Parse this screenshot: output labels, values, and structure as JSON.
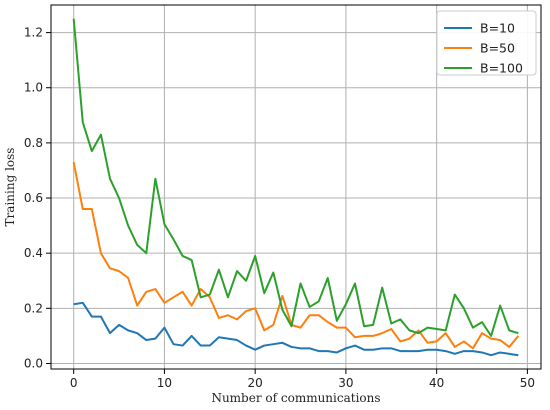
{
  "chart_data": {
    "type": "line",
    "title": "",
    "xlabel": "Number of communications",
    "ylabel": "Training loss",
    "xlim": [
      -2.5,
      51.5
    ],
    "ylim": [
      -0.02,
      1.3
    ],
    "xticks": [
      0,
      10,
      20,
      30,
      40,
      50
    ],
    "yticks": [
      0.0,
      0.2,
      0.4,
      0.6,
      0.8,
      1.0,
      1.2
    ],
    "grid": true,
    "legend_position": "top-right",
    "x": [
      0,
      1,
      2,
      3,
      4,
      5,
      6,
      7,
      8,
      9,
      10,
      11,
      12,
      13,
      14,
      15,
      16,
      17,
      18,
      19,
      20,
      21,
      22,
      23,
      24,
      25,
      26,
      27,
      28,
      29,
      30,
      31,
      32,
      33,
      34,
      35,
      36,
      37,
      38,
      39,
      40,
      41,
      42,
      43,
      44,
      45,
      46,
      47,
      48,
      49
    ],
    "series": [
      {
        "name": "B=10",
        "color": "#1f77b4",
        "values": [
          0.215,
          0.22,
          0.17,
          0.17,
          0.11,
          0.14,
          0.12,
          0.11,
          0.085,
          0.09,
          0.13,
          0.07,
          0.065,
          0.1,
          0.065,
          0.065,
          0.095,
          0.09,
          0.085,
          0.065,
          0.05,
          0.065,
          0.07,
          0.075,
          0.06,
          0.055,
          0.055,
          0.045,
          0.045,
          0.04,
          0.055,
          0.065,
          0.05,
          0.05,
          0.055,
          0.055,
          0.045,
          0.045,
          0.045,
          0.05,
          0.05,
          0.045,
          0.035,
          0.045,
          0.045,
          0.04,
          0.03,
          0.04,
          0.035,
          0.03
        ]
      },
      {
        "name": "B=50",
        "color": "#ff7f0e",
        "values": [
          0.73,
          0.56,
          0.56,
          0.4,
          0.345,
          0.335,
          0.31,
          0.21,
          0.26,
          0.27,
          0.22,
          0.24,
          0.26,
          0.21,
          0.27,
          0.24,
          0.165,
          0.175,
          0.16,
          0.19,
          0.2,
          0.12,
          0.14,
          0.245,
          0.14,
          0.13,
          0.175,
          0.175,
          0.15,
          0.13,
          0.13,
          0.095,
          0.1,
          0.1,
          0.11,
          0.125,
          0.08,
          0.09,
          0.12,
          0.075,
          0.08,
          0.11,
          0.06,
          0.08,
          0.055,
          0.11,
          0.09,
          0.085,
          0.06,
          0.1
        ]
      },
      {
        "name": "B=100",
        "color": "#2ca02c",
        "values": [
          1.25,
          0.875,
          0.77,
          0.83,
          0.67,
          0.6,
          0.5,
          0.43,
          0.4,
          0.67,
          0.505,
          0.45,
          0.39,
          0.375,
          0.24,
          0.25,
          0.34,
          0.24,
          0.335,
          0.3,
          0.39,
          0.255,
          0.33,
          0.195,
          0.135,
          0.29,
          0.205,
          0.225,
          0.31,
          0.155,
          0.215,
          0.29,
          0.135,
          0.14,
          0.275,
          0.145,
          0.16,
          0.12,
          0.11,
          0.13,
          0.125,
          0.12,
          0.25,
          0.2,
          0.13,
          0.15,
          0.1,
          0.21,
          0.12,
          0.11
        ]
      }
    ]
  }
}
